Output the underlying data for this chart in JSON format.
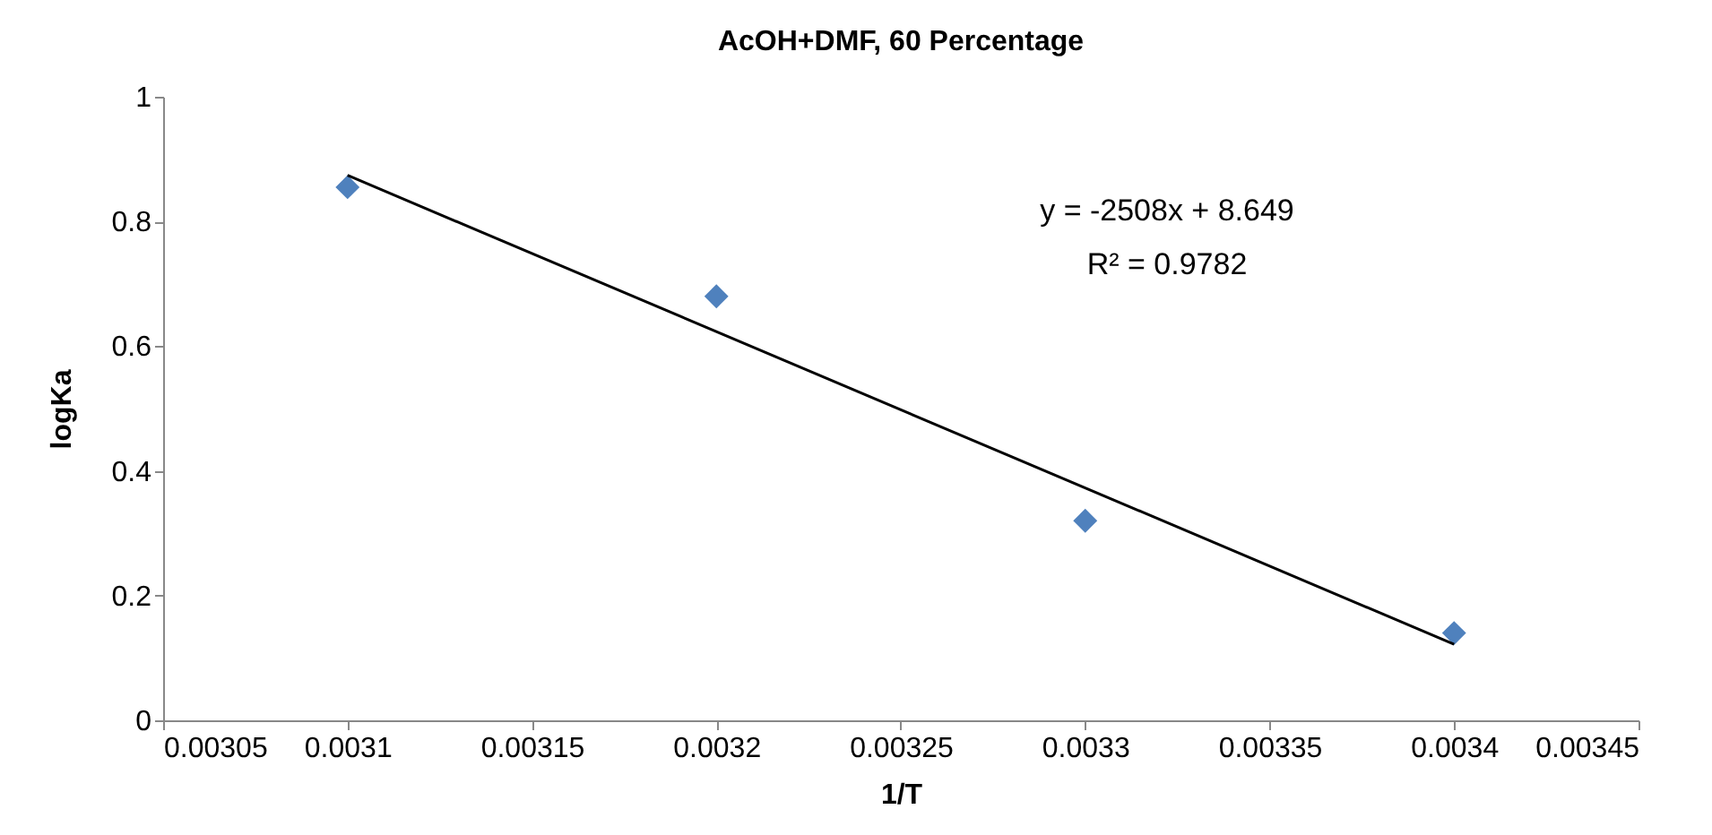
{
  "chart_data": {
    "type": "scatter",
    "title": "AcOH+DMF, 60 Percentage",
    "xlabel": "1/T",
    "ylabel": "logKa",
    "x": [
      0.0031,
      0.0032,
      0.0033,
      0.0034
    ],
    "series": [
      {
        "color": "#4f81bd",
        "values": [
          0.855,
          0.68,
          0.32,
          0.14
        ],
        "marker": "diamond"
      },
      {
        "type": "line",
        "color": "#000000",
        "x": [
          0.0031,
          0.0034
        ],
        "values": [
          0.874,
          0.122
        ],
        "marker": "none"
      }
    ],
    "annotations": [
      "y = -2508x + 8.649",
      "R² = 0.9782"
    ],
    "xlim": [
      0.00305,
      0.00345
    ],
    "xticks": [
      0.00305,
      0.0031,
      0.00315,
      0.0032,
      0.00325,
      0.0033,
      0.00335,
      0.0034,
      0.00345
    ],
    "ylim": [
      0,
      1
    ],
    "yticks": [
      0,
      0.2,
      0.4,
      0.6,
      0.8,
      1
    ],
    "grid": false
  }
}
